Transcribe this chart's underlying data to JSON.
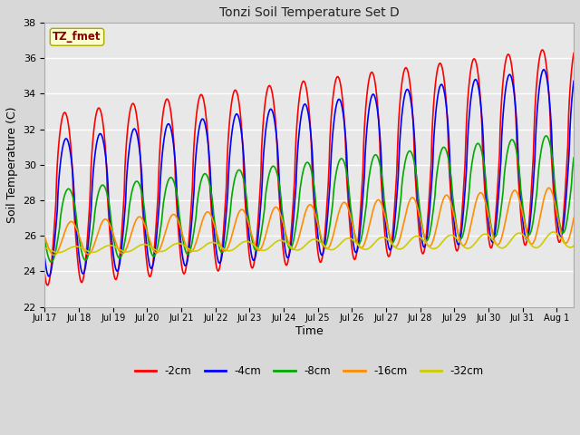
{
  "title": "Tonzi Soil Temperature Set D",
  "xlabel": "Time",
  "ylabel": "Soil Temperature (C)",
  "ylim": [
    22,
    38
  ],
  "xlim_days": 15.5,
  "background_color": "#e0e0e0",
  "plot_bg_color": "#e8e8e8",
  "annotation_text": "TZ_fmet",
  "annotation_color": "#8b0000",
  "annotation_bg": "#ffffcc",
  "legend_labels": [
    "-2cm",
    "-4cm",
    "-8cm",
    "-16cm",
    "-32cm"
  ],
  "line_colors": [
    "#ff0000",
    "#0000ff",
    "#00aa00",
    "#ff8c00",
    "#cccc00"
  ],
  "line_widths": [
    1.2,
    1.2,
    1.2,
    1.2,
    1.2
  ],
  "xtick_labels": [
    "Jul 17",
    "Jul 18",
    "Jul 19",
    "Jul 20",
    "Jul 21",
    "Jul 22",
    "Jul 23",
    "Jul 24",
    "Jul 25",
    "Jul 26",
    "Jul 27",
    "Jul 28",
    "Jul 29",
    "Jul 30",
    "Jul 31",
    "Aug 1"
  ],
  "ytick_values": [
    22,
    24,
    26,
    28,
    30,
    32,
    34,
    36,
    38
  ],
  "fig_width": 6.4,
  "fig_height": 4.8,
  "dpi": 100
}
